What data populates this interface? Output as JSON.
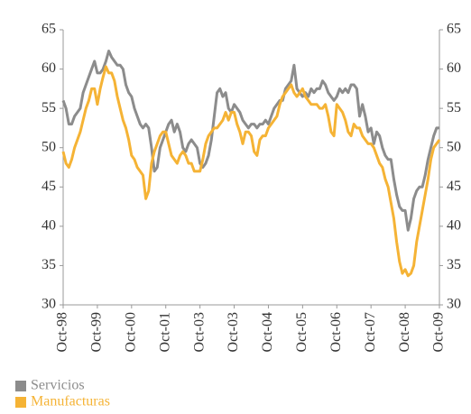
{
  "chart_data": {
    "type": "line",
    "categories": [
      "Oct-98",
      null,
      null,
      null,
      null,
      null,
      null,
      null,
      null,
      null,
      null,
      null,
      "Oct-99",
      null,
      null,
      null,
      null,
      null,
      null,
      null,
      null,
      null,
      null,
      null,
      "Oct-00",
      null,
      null,
      null,
      null,
      null,
      null,
      null,
      null,
      null,
      null,
      null,
      "Oct-01",
      null,
      null,
      null,
      null,
      null,
      null,
      null,
      null,
      null,
      null,
      null,
      "Oct-03",
      null,
      null,
      null,
      null,
      null,
      null,
      null,
      null,
      null,
      null,
      null,
      "Oct-03",
      null,
      null,
      null,
      null,
      null,
      null,
      null,
      null,
      null,
      null,
      null,
      "Oct-04",
      null,
      null,
      null,
      null,
      null,
      null,
      null,
      null,
      null,
      null,
      null,
      "Oct-05",
      null,
      null,
      null,
      null,
      null,
      null,
      null,
      null,
      null,
      null,
      null,
      "Oct-06",
      null,
      null,
      null,
      null,
      null,
      null,
      null,
      null,
      null,
      null,
      null,
      "Oct-07",
      null,
      null,
      null,
      null,
      null,
      null,
      null,
      null,
      null,
      null,
      null,
      "Oct-08",
      null,
      null,
      null,
      null,
      null,
      null,
      null,
      null,
      null,
      null,
      null,
      "Oct-09"
    ],
    "series": [
      {
        "name": "Servicios",
        "color": "#8c8c8c",
        "values": [
          56,
          55,
          53,
          53,
          54,
          54.5,
          55,
          57,
          58,
          59,
          60,
          61,
          59.5,
          59.5,
          60,
          61,
          62.3,
          61.5,
          61,
          60.5,
          60.5,
          60,
          58,
          57,
          56.5,
          55,
          54,
          53,
          52.5,
          53,
          52.5,
          50,
          47,
          47.5,
          50,
          51,
          52,
          53,
          53.5,
          52,
          53,
          52,
          50,
          49.5,
          50.5,
          51,
          50.5,
          50,
          48,
          47.5,
          48,
          49,
          51,
          54,
          57,
          57.5,
          56.5,
          57,
          55,
          54.5,
          55.5,
          55,
          54.5,
          53.5,
          53,
          52.5,
          53,
          53,
          52.5,
          53,
          53,
          53.5,
          53,
          54,
          55,
          55.5,
          56,
          56,
          57.5,
          58,
          58.5,
          60.5,
          57.5,
          57,
          56.5,
          57,
          56.5,
          57.5,
          57,
          57.5,
          57.5,
          58.5,
          58,
          57,
          56.5,
          56,
          56.5,
          57.5,
          57,
          57.5,
          57,
          58,
          58,
          57.5,
          54,
          55.5,
          54,
          52,
          52.5,
          50.5,
          52,
          51.5,
          50,
          49,
          48.5,
          48.5,
          46,
          44,
          42.5,
          42,
          42,
          39.5,
          41,
          43.5,
          44.5,
          45,
          45,
          46.5,
          48.5,
          50,
          51.5,
          52.5,
          52.5
        ]
      },
      {
        "name": "Manufacturas",
        "color": "#f5b335",
        "values": [
          49.5,
          48,
          47.5,
          48.5,
          50,
          51,
          52,
          53.5,
          55,
          56,
          57.5,
          57.5,
          55.5,
          57.5,
          59,
          60.3,
          59.5,
          59.5,
          58.5,
          56.5,
          55,
          53.5,
          52.5,
          51,
          49,
          48.5,
          47.5,
          47,
          46.5,
          43.5,
          44.5,
          48,
          49.5,
          50.5,
          51.5,
          52,
          52,
          50.5,
          49,
          48.5,
          48,
          49,
          49.5,
          49,
          48,
          48,
          47,
          47,
          47,
          48.5,
          50.5,
          51.5,
          52,
          52.5,
          52.5,
          53,
          53.5,
          54.5,
          53.5,
          54.5,
          54.5,
          53,
          52,
          50.5,
          52,
          52,
          51.5,
          49.5,
          49,
          51,
          51.5,
          51.5,
          52.5,
          53,
          53.5,
          54,
          55.5,
          56.5,
          57,
          57.5,
          58,
          57,
          56.5,
          57,
          57.5,
          56.5,
          56,
          55.5,
          55.5,
          55.5,
          55,
          55,
          55.5,
          54,
          52,
          51.5,
          55.5,
          55,
          54.5,
          53.5,
          52,
          51.5,
          53,
          52.5,
          52.5,
          51.5,
          51,
          50.5,
          50.5,
          50,
          49,
          48,
          47.5,
          46,
          45,
          43,
          41,
          38,
          35.5,
          34,
          34.5,
          33.7,
          34,
          35,
          38,
          40,
          42,
          44,
          46,
          48.5,
          50,
          50.5,
          51
        ]
      }
    ],
    "ylim": [
      30,
      65
    ],
    "yticks": [
      30,
      35,
      40,
      45,
      50,
      55,
      60,
      65
    ],
    "y2lim": [
      30,
      65
    ],
    "y2ticks": [
      30,
      35,
      40,
      45,
      50,
      55,
      60,
      65
    ],
    "grid": false,
    "legend": "bottom-left"
  }
}
